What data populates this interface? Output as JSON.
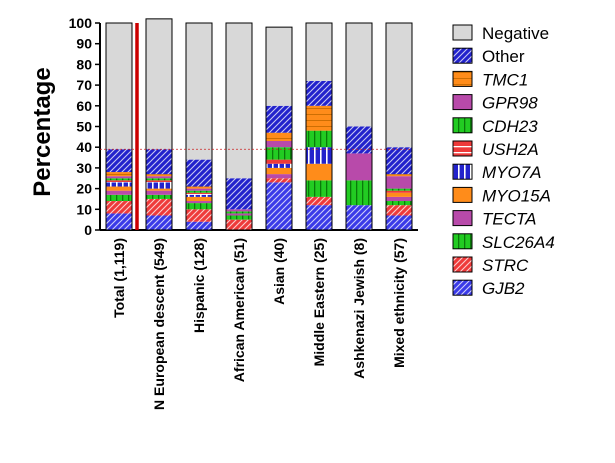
{
  "chart_data": {
    "type": "bar",
    "stacked": true,
    "ylabel": "Percentage",
    "xlabel": "",
    "ylim": [
      0,
      100
    ],
    "yticks": [
      0,
      10,
      20,
      30,
      40,
      50,
      60,
      70,
      80,
      90,
      100
    ],
    "categories": [
      "Total (1,119)",
      "N European descent (549)",
      "Hispanic (128)",
      "African American (51)",
      "Asian (40)",
      "Middle Eastern (25)",
      "Ashkenazi Jewish (8)",
      "Mixed ethnicity (57)"
    ],
    "reference_line_y": 39,
    "series": [
      {
        "name": "GJB2",
        "color": "#3a3ae8",
        "pattern": "diag",
        "values": [
          8,
          7,
          4,
          0,
          23,
          12,
          12,
          7
        ]
      },
      {
        "name": "STRC",
        "color": "#ee3a3a",
        "pattern": "diag",
        "values": [
          6,
          8,
          6,
          5,
          2,
          4,
          0,
          5
        ]
      },
      {
        "name": "SLC26A4",
        "color": "#22cc22",
        "pattern": "vstripe",
        "values": [
          3,
          2,
          3,
          2,
          0,
          8,
          12,
          2
        ]
      },
      {
        "name": "TECTA",
        "color": "#b84aaa",
        "pattern": "none",
        "values": [
          2,
          2,
          1,
          1,
          2,
          0,
          0,
          2
        ]
      },
      {
        "name": "MYO15A",
        "color": "#ff8c1a",
        "pattern": "none",
        "values": [
          2,
          1,
          2,
          0,
          3,
          8,
          0,
          2
        ]
      },
      {
        "name": "MYO7A",
        "color": "#2222cc",
        "pattern": "dotted",
        "values": [
          2,
          3,
          1,
          0,
          2,
          8,
          0,
          0
        ]
      },
      {
        "name": "USH2A",
        "color": "#ee3a3a",
        "pattern": "hstripe",
        "values": [
          1,
          1,
          1,
          0,
          2,
          0,
          0,
          1
        ]
      },
      {
        "name": "CDH23",
        "color": "#22cc22",
        "pattern": "vstripe",
        "values": [
          1,
          1,
          1,
          1,
          6,
          8,
          0,
          1
        ]
      },
      {
        "name": "GPR98",
        "color": "#b84aaa",
        "pattern": "none",
        "values": [
          1,
          1,
          1,
          1,
          3,
          0,
          13,
          6
        ]
      },
      {
        "name": "TMC1",
        "color": "#ff8c1a",
        "pattern": "hline",
        "values": [
          2,
          1,
          1,
          0,
          4,
          12,
          0,
          1
        ]
      },
      {
        "name": "Other",
        "color": "#2222cc",
        "pattern": "diag",
        "values": [
          11,
          12,
          13,
          15,
          13,
          12,
          13,
          13
        ]
      },
      {
        "name": "Negative",
        "color": "#d8d8d8",
        "pattern": "none",
        "values": [
          61,
          63,
          66,
          75,
          38,
          28,
          50,
          60
        ]
      }
    ],
    "legend": [
      "Negative",
      "Other",
      "TMC1",
      "GPR98",
      "CDH23",
      "USH2A",
      "MYO7A",
      "MYO15A",
      "TECTA",
      "SLC26A4",
      "STRC",
      "GJB2"
    ],
    "legend_italic": [
      false,
      false,
      true,
      true,
      true,
      true,
      true,
      true,
      true,
      true,
      true,
      true
    ],
    "legend_position": "right",
    "grid": false,
    "divider_after_category": 0
  }
}
